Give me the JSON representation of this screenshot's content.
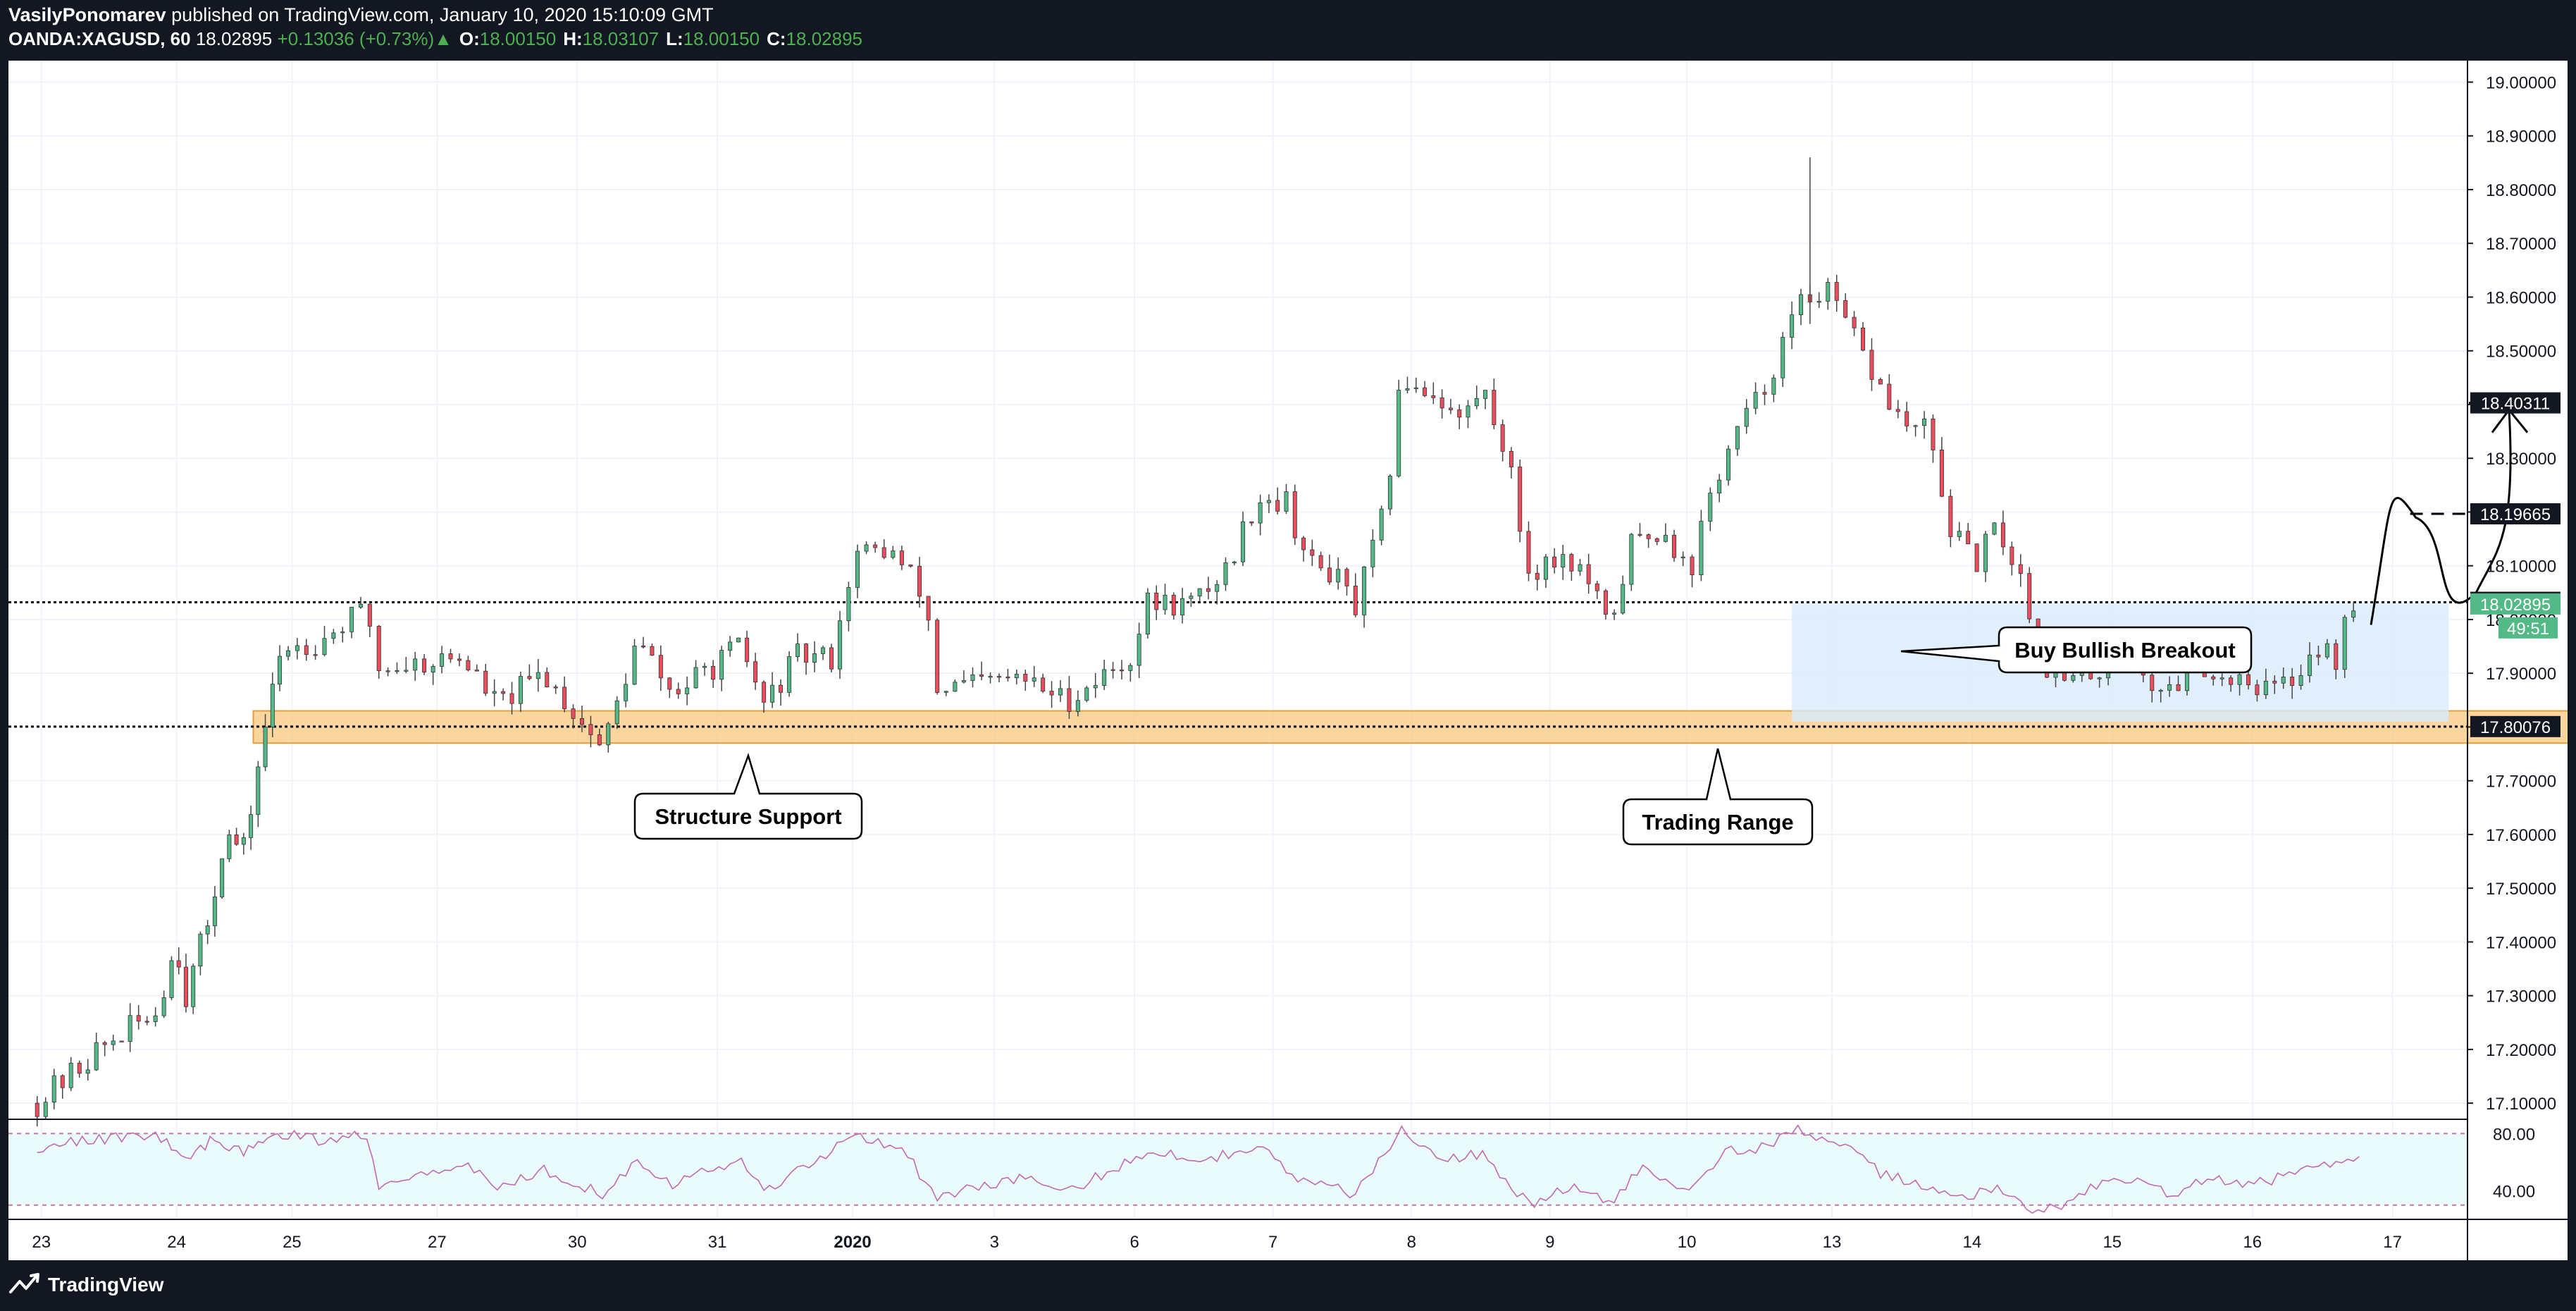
{
  "header": {
    "author": "VasilyPonomarev",
    "published": "published on TradingView.com, January 10, 2020 15:10:09 GMT",
    "symbol": "OANDA:XAGUSD, 60",
    "last": "18.02895",
    "change": "+0.13036 (+0.73%)",
    "change_arrow": "▲",
    "o_label": "O:",
    "o_value": "18.00150",
    "h_label": "H:",
    "h_value": "18.03107",
    "l_label": "L:",
    "l_value": "18.00150",
    "c_label": "C:",
    "c_value": "18.02895"
  },
  "footer": {
    "brand": "TradingView",
    "logo_icon": "tradingview-logo-icon"
  },
  "colors": {
    "up": "#26a69a",
    "down": "#ef5350",
    "up_body": "#53b987",
    "down_body": "#eb4d5c",
    "support_zone": "#f8c77e",
    "range_zone": "#d9ebfb",
    "rsi_band": "#e9fbfb",
    "rsi_line": "#c06bb1"
  },
  "chart_data": [
    {
      "type": "candlestick",
      "x_ticks": [
        "23",
        "24",
        "25",
        "27",
        "30",
        "31",
        "2020",
        "3",
        "6",
        "7",
        "8",
        "9",
        "10",
        "13",
        "14",
        "15",
        "16",
        "17"
      ],
      "y_ticks": [
        "17.10000",
        "17.20000",
        "17.30000",
        "17.40000",
        "17.50000",
        "17.60000",
        "17.70000",
        "17.80000",
        "17.90000",
        "18.00000",
        "18.10000",
        "18.20000",
        "18.30000",
        "18.40000",
        "18.50000",
        "18.60000",
        "18.70000",
        "18.80000",
        "18.90000",
        "19.00000"
      ],
      "ylim": [
        17.07,
        19.04
      ],
      "price_labels": [
        {
          "value": 18.40311,
          "label": "18.40311",
          "style": "black"
        },
        {
          "value": 18.19665,
          "label": "18.19665",
          "style": "black"
        },
        {
          "value": 18.03201,
          "label": "18.03201",
          "style": "black"
        },
        {
          "value": 18.02895,
          "label": "18.02895",
          "style": "green"
        },
        {
          "value": 17.80076,
          "label": "17.80076",
          "style": "black"
        }
      ],
      "countdown": "49:51",
      "levels": [
        {
          "value": 18.03201,
          "style": "dotted"
        },
        {
          "value": 17.80076,
          "style": "dotted"
        },
        {
          "value": 18.40311,
          "style": "dashed"
        },
        {
          "value": 18.19665,
          "style": "dashed"
        }
      ],
      "zones": [
        {
          "name": "structure-support-zone",
          "from": "Dec 24 18:00",
          "to": "Jan 14 14:00",
          "low": 17.77,
          "high": 17.83
        },
        {
          "name": "trading-range-zone",
          "from": "Jan 8 19:00",
          "to": "Jan 13 12:00",
          "low": 17.81,
          "high": 18.03
        }
      ],
      "annotations": [
        {
          "text": "Structure Support"
        },
        {
          "text": "Trading Range"
        },
        {
          "text": "Buy Bullish Breakout"
        }
      ],
      "path": [
        [
          "Dec 23 01:00",
          17.1
        ],
        [
          "Dec 23 12:00",
          17.2
        ],
        [
          "Dec 23 22:00",
          17.27
        ],
        [
          "Dec 24 02:00",
          17.4
        ],
        [
          "Dec 24 04:00",
          17.3
        ],
        [
          "Dec 24 09:00",
          17.45
        ],
        [
          "Dec 24 12:00",
          17.6
        ],
        [
          "Dec 24 16:00",
          17.57
        ],
        [
          "Dec 24 20:00",
          17.78
        ],
        [
          "Dec 25 00:00",
          17.95
        ],
        [
          "Dec 25 06:00",
          17.96
        ],
        [
          "Dec 25 14:00",
          18.02
        ],
        [
          "Dec 25 16:00",
          17.91
        ],
        [
          "Dec 26 06:00",
          17.93
        ],
        [
          "Dec 26 12:00",
          17.84
        ],
        [
          "Dec 26 20:00",
          17.9
        ],
        [
          "Dec 27 06:00",
          17.76
        ],
        [
          "Dec 27 12:00",
          17.96
        ],
        [
          "Dec 27 18:00",
          17.86
        ],
        [
          "Dec 30 06:00",
          17.95
        ],
        [
          "Dec 30 10:00",
          17.84
        ],
        [
          "Dec 30 16:00",
          17.93
        ],
        [
          "Dec 30 22:00",
          17.93
        ],
        [
          "Dec 31 02:00",
          18.12
        ],
        [
          "Dec 31 08:00",
          18.13
        ],
        [
          "Dec 31 14:00",
          18.04
        ],
        [
          "Dec 31 16:00",
          17.87
        ],
        [
          "Jan 1 06:00",
          17.89
        ],
        [
          "Jan 1 14:00",
          17.85
        ],
        [
          "Jan 2 01:00",
          17.93
        ],
        [
          "Jan 2 04:00",
          18.03
        ],
        [
          "Jan 2 12:00",
          18.03
        ],
        [
          "Jan 2 18:00",
          18.1
        ],
        [
          "Jan 2 23:00",
          18.23
        ],
        [
          "Jan 3 04:00",
          18.22
        ],
        [
          "Jan 3 08:00",
          18.1
        ],
        [
          "Jan 3 12:00",
          18.09
        ],
        [
          "Jan 3 16:00",
          18.02
        ],
        [
          "Jan 3 21:00",
          18.2
        ],
        [
          "Jan 6 00:00",
          18.45
        ],
        [
          "Jan 6 06:00",
          18.42
        ],
        [
          "Jan 6 10:00",
          18.37
        ],
        [
          "Jan 6 14:00",
          18.43
        ],
        [
          "Jan 6 18:00",
          18.32
        ],
        [
          "Jan 6 22:00",
          18.09
        ],
        [
          "Jan 7 04:00",
          18.12
        ],
        [
          "Jan 7 08:00",
          18.08
        ],
        [
          "Jan 7 12:00",
          17.98
        ],
        [
          "Jan 7 16:00",
          18.14
        ],
        [
          "Jan 7 22:00",
          18.17
        ],
        [
          "Jan 8 02:00",
          18.08
        ],
        [
          "Jan 8 06:00",
          18.25
        ],
        [
          "Jan 8 10:00",
          18.35
        ],
        [
          "Jan 8 14:00",
          18.42
        ],
        [
          "Jan 8 20:00",
          18.58
        ],
        [
          "Jan 9 00:00",
          18.62
        ],
        [
          "Jan 9 04:00",
          18.55
        ],
        [
          "Jan 9 10:00",
          18.43
        ],
        [
          "Jan 9 14:00",
          18.36
        ],
        [
          "Jan 9 18:00",
          18.35
        ],
        [
          "Jan 9 22:00",
          18.17
        ],
        [
          "Jan 10 02:00",
          18.1
        ],
        [
          "Jan 10 06:00",
          18.17
        ],
        [
          "Jan 10 10:00",
          18.08
        ],
        [
          "Jan 10 14:00",
          17.92
        ],
        [
          "Jan 10 18:00",
          17.88
        ],
        [
          "Jan 11 00:00",
          17.91
        ],
        [
          "Jan 11 04:00",
          17.96
        ],
        [
          "Jan 11 08:00",
          17.88
        ],
        [
          "Jan 11 12:00",
          17.87
        ],
        [
          "Jan 11 16:00",
          17.93
        ],
        [
          "Jan 11 20:00",
          17.89
        ],
        [
          "Jan 12 00:00",
          17.9
        ],
        [
          "Jan 12 04:00",
          17.87
        ],
        [
          "Jan 12 08:00",
          17.88
        ],
        [
          "Jan 12 12:00",
          17.95
        ],
        [
          "Jan 12 16:00",
          17.93
        ],
        [
          "Jan 12 18:00",
          18.0
        ],
        [
          "Jan 12 20:00",
          18.03
        ]
      ],
      "rsi": {
        "levels": [
          80,
          40
        ],
        "y_ticks": [
          "80.00",
          "40.00"
        ],
        "ylim": [
          20,
          90
        ],
        "path": [
          [
            "Dec 23 01:00",
            70
          ],
          [
            "Dec 23 10:00",
            75
          ],
          [
            "Dec 23 22:00",
            80
          ],
          [
            "Dec 24 04:00",
            60
          ],
          [
            "Dec 24 10:00",
            78
          ],
          [
            "Dec 24 16:00",
            65
          ],
          [
            "Dec 24 22:00",
            82
          ],
          [
            "Dec 25 06:00",
            75
          ],
          [
            "Dec 25 14:00",
            80
          ],
          [
            "Dec 25 16:00",
            45
          ],
          [
            "Dec 26 06:00",
            60
          ],
          [
            "Dec 26 12:00",
            42
          ],
          [
            "Dec 26 20:00",
            55
          ],
          [
            "Dec 27 06:00",
            38
          ],
          [
            "Dec 27 12:00",
            62
          ],
          [
            "Dec 27 18:00",
            45
          ],
          [
            "Dec 30 06:00",
            62
          ],
          [
            "Dec 30 10:00",
            40
          ],
          [
            "Dec 30 18:00",
            58
          ],
          [
            "Dec 31 02:00",
            80
          ],
          [
            "Dec 31 10:00",
            70
          ],
          [
            "Dec 31 16:00",
            35
          ],
          [
            "Jan 1 06:00",
            50
          ],
          [
            "Jan 1 14:00",
            38
          ],
          [
            "Jan 2 04:00",
            68
          ],
          [
            "Jan 2 14:00",
            62
          ],
          [
            "Jan 2 23:00",
            72
          ],
          [
            "Jan 3 06:00",
            48
          ],
          [
            "Jan 3 16:00",
            38
          ],
          [
            "Jan 3 21:00",
            65
          ],
          [
            "Jan 6 00:00",
            83
          ],
          [
            "Jan 6 08:00",
            62
          ],
          [
            "Jan 6 14:00",
            66
          ],
          [
            "Jan 6 22:00",
            30
          ],
          [
            "Jan 7 06:00",
            44
          ],
          [
            "Jan 7 12:00",
            30
          ],
          [
            "Jan 7 18:00",
            56
          ],
          [
            "Jan 8 02:00",
            42
          ],
          [
            "Jan 8 08:00",
            68
          ],
          [
            "Jan 8 14:00",
            70
          ],
          [
            "Jan 8 20:00",
            82
          ],
          [
            "Jan 9 02:00",
            76
          ],
          [
            "Jan 9 10:00",
            52
          ],
          [
            "Jan 9 16:00",
            45
          ],
          [
            "Jan 9 22:00",
            36
          ],
          [
            "Jan 10 06:00",
            40
          ],
          [
            "Jan 10 12:00",
            25
          ],
          [
            "Jan 10 18:00",
            32
          ],
          [
            "Jan 11 00:00",
            45
          ],
          [
            "Jan 11 06:00",
            48
          ],
          [
            "Jan 11 12:00",
            36
          ],
          [
            "Jan 11 18:00",
            48
          ],
          [
            "Jan 12 00:00",
            44
          ],
          [
            "Jan 12 08:00",
            50
          ],
          [
            "Jan 12 14:00",
            58
          ],
          [
            "Jan 12 20:00",
            65
          ]
        ]
      }
    }
  ]
}
